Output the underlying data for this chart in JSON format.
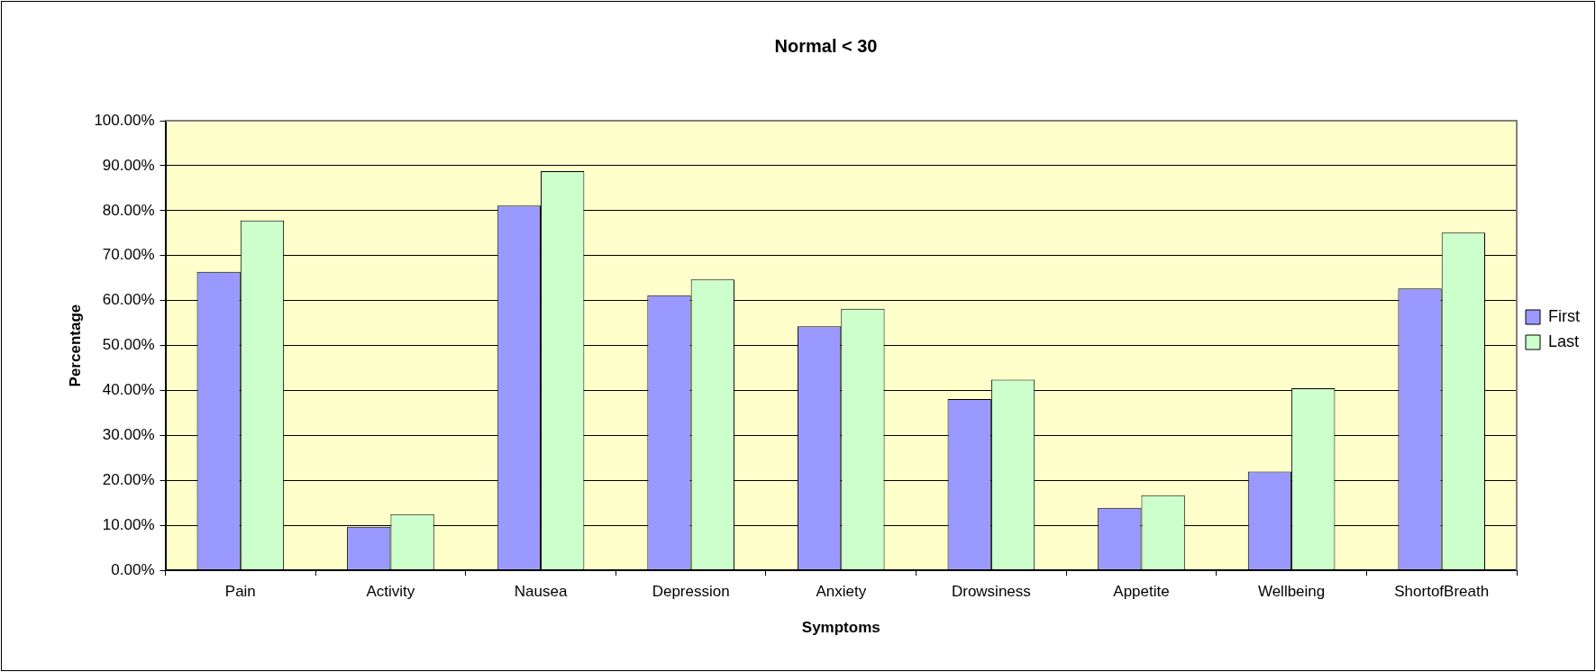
{
  "chart_data": {
    "type": "bar",
    "title": "Normal < 30",
    "xlabel": "Symptoms",
    "ylabel": "Percentage",
    "categories": [
      "Pain",
      "Activity",
      "Nausea",
      "Depression",
      "Anxiety",
      "Drowsiness",
      "Appetite",
      "Wellbeing",
      "ShortofBreath"
    ],
    "series": [
      {
        "name": "First",
        "color": "#9999ff",
        "values": [
          66.4,
          9.7,
          81.1,
          61.2,
          54.3,
          38.1,
          13.9,
          22.0,
          62.7
        ]
      },
      {
        "name": "Last",
        "color": "#ccffcc",
        "values": [
          77.8,
          12.5,
          88.8,
          64.7,
          58.2,
          42.4,
          16.7,
          40.5,
          75.1
        ]
      }
    ],
    "ylim": [
      0,
      100
    ],
    "yticks": [
      {
        "value": 0,
        "label": "0.00%"
      },
      {
        "value": 10,
        "label": "10.00%"
      },
      {
        "value": 20,
        "label": "20.00%"
      },
      {
        "value": 30,
        "label": "30.00%"
      },
      {
        "value": 40,
        "label": "40.00%"
      },
      {
        "value": 50,
        "label": "50.00%"
      },
      {
        "value": 60,
        "label": "60.00%"
      },
      {
        "value": 70,
        "label": "70.00%"
      },
      {
        "value": 80,
        "label": "80.00%"
      },
      {
        "value": 90,
        "label": "90.00%"
      },
      {
        "value": 100,
        "label": "100.00%"
      }
    ],
    "grid": "y",
    "legend": "right"
  }
}
